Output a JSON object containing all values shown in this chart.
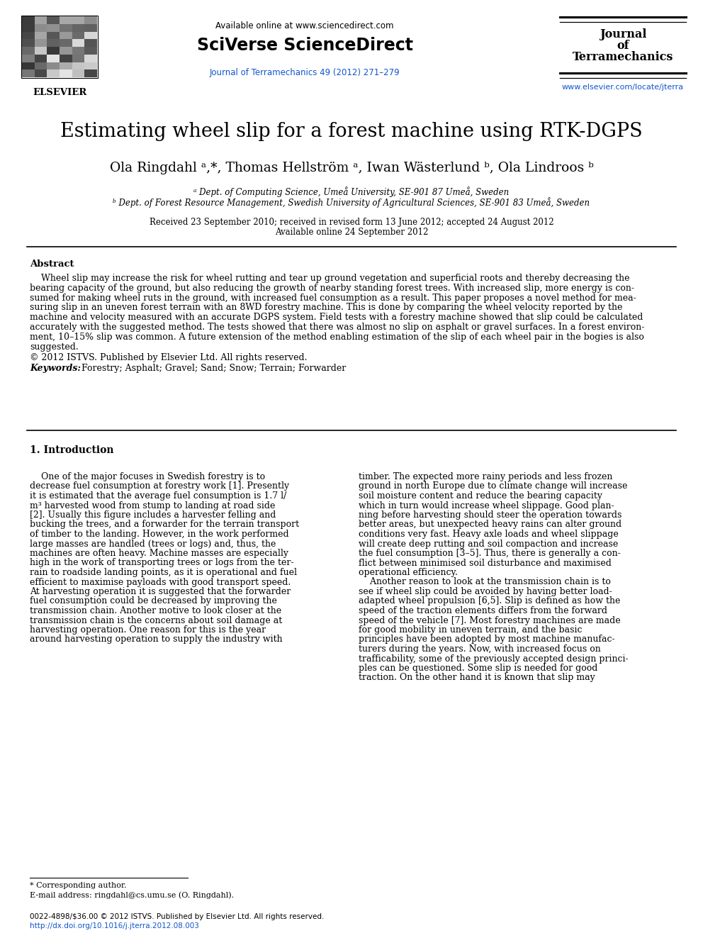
{
  "title": "Estimating wheel slip for a forest machine using RTK-DGPS",
  "affil_a": "ᵃ Dept. of Computing Science, Umeå University, SE-901 87 Umeå, Sweden",
  "affil_b": "ᵇ Dept. of Forest Resource Management, Swedish University of Agricultural Sciences, SE-901 83 Umeå, Sweden",
  "dates": "Received 23 September 2010; received in revised form 13 June 2012; accepted 24 August 2012",
  "online": "Available online 24 September 2012",
  "available_online_header": "Available online at www.sciencedirect.com",
  "sciverse": "SciVerse ScienceDirect",
  "journal_link": "Journal of Terramechanics 49 (2012) 271–279",
  "journal_title_line1": "Journal",
  "journal_title_line2": "of",
  "journal_title_line3": "Terramechanics",
  "journal_website": "www.elsevier.com/locate/jterra",
  "elsevier_text": "ELSEVIER",
  "abstract_title": "Abstract",
  "abstract_text": "    Wheel slip may increase the risk for wheel rutting and tear up ground vegetation and superficial roots and thereby decreasing the bearing capacity of the ground, but also reducing the growth of nearby standing forest trees. With increased slip, more energy is consumed for making wheel ruts in the ground, with increased fuel consumption as a result. This paper proposes a novel method for measuring slip in an uneven forest terrain with an 8WD forestry machine. This is done by comparing the wheel velocity reported by the machine and velocity measured with an accurate DGPS system. Field tests with a forestry machine showed that slip could be calculated accurately with the suggested method. The tests showed that there was almost no slip on asphalt or gravel surfaces. In a forest environment, 10–15% slip was common. A future extension of the method enabling estimation of the slip of each wheel pair in the bogies is also suggested.",
  "copyright": "© 2012 ISTVS. Published by Elsevier Ltd. All rights reserved.",
  "keywords_label": "Keywords:",
  "keywords_text": "  Forestry; Asphalt; Gravel; Sand; Snow; Terrain; Forwarder",
  "section1_title": "1. Introduction",
  "intro_col1_lines": [
    "    One of the major focuses in Swedish forestry is to",
    "decrease fuel consumption at forestry work [1]. Presently",
    "it is estimated that the average fuel consumption is 1.7 l/",
    "m³ harvested wood from stump to landing at road side",
    "[2]. Usually this figure includes a harvester felling and",
    "bucking the trees, and a forwarder for the terrain transport",
    "of timber to the landing. However, in the work performed",
    "large masses are handled (trees or logs) and, thus, the",
    "machines are often heavy. Machine masses are especially",
    "high in the work of transporting trees or logs from the ter-",
    "rain to roadside landing points, as it is operational and fuel",
    "efficient to maximise payloads with good transport speed.",
    "At harvesting operation it is suggested that the forwarder",
    "fuel consumption could be decreased by improving the",
    "transmission chain. Another motive to look closer at the",
    "transmission chain is the concerns about soil damage at",
    "harvesting operation. One reason for this is the year",
    "around harvesting operation to supply the industry with"
  ],
  "intro_col2_lines": [
    "timber. The expected more rainy periods and less frozen",
    "ground in north Europe due to climate change will increase",
    "soil moisture content and reduce the bearing capacity",
    "which in turn would increase wheel slippage. Good plan-",
    "ning before harvesting should steer the operation towards",
    "better areas, but unexpected heavy rains can alter ground",
    "conditions very fast. Heavy axle loads and wheel slippage",
    "will create deep rutting and soil compaction and increase",
    "the fuel consumption [3–5]. Thus, there is generally a con-",
    "flict between minimised soil disturbance and maximised",
    "operational efficiency.",
    "    Another reason to look at the transmission chain is to",
    "see if wheel slip could be avoided by having better load-",
    "adapted wheel propulsion [6,5]. Slip is defined as how the",
    "speed of the traction elements differs from the forward",
    "speed of the vehicle [7]. Most forestry machines are made",
    "for good mobility in uneven terrain, and the basic",
    "principles have been adopted by most machine manufac-",
    "turers during the years. Now, with increased focus on",
    "trafficability, some of the previously accepted design princi-",
    "ples can be questioned. Some slip is needed for good",
    "traction. On the other hand it is known that slip may"
  ],
  "abstract_lines": [
    "    Wheel slip may increase the risk for wheel rutting and tear up ground vegetation and superficial roots and thereby decreasing the",
    "bearing capacity of the ground, but also reducing the growth of nearby standing forest trees. With increased slip, more energy is con-",
    "sumed for making wheel ruts in the ground, with increased fuel consumption as a result. This paper proposes a novel method for mea-",
    "suring slip in an uneven forest terrain with an 8WD forestry machine. This is done by comparing the wheel velocity reported by the",
    "machine and velocity measured with an accurate DGPS system. Field tests with a forestry machine showed that slip could be calculated",
    "accurately with the suggested method. The tests showed that there was almost no slip on asphalt or gravel surfaces. In a forest environ-",
    "ment, 10–15% slip was common. A future extension of the method enabling estimation of the slip of each wheel pair in the bogies is also",
    "suggested."
  ],
  "footnote_line1": "* Corresponding author.",
  "footnote_line2": "E-mail address: ringdahl@cs.umu.se (O. Ringdahl).",
  "bottom_line1": "0022-4898/$36.00 © 2012 ISTVS. Published by Elsevier Ltd. All rights reserved.",
  "bottom_line2": "http://dx.doi.org/10.1016/j.jterra.2012.08.003",
  "link_color": "#1155CC",
  "text_color": "#000000",
  "bg_color": "#ffffff"
}
